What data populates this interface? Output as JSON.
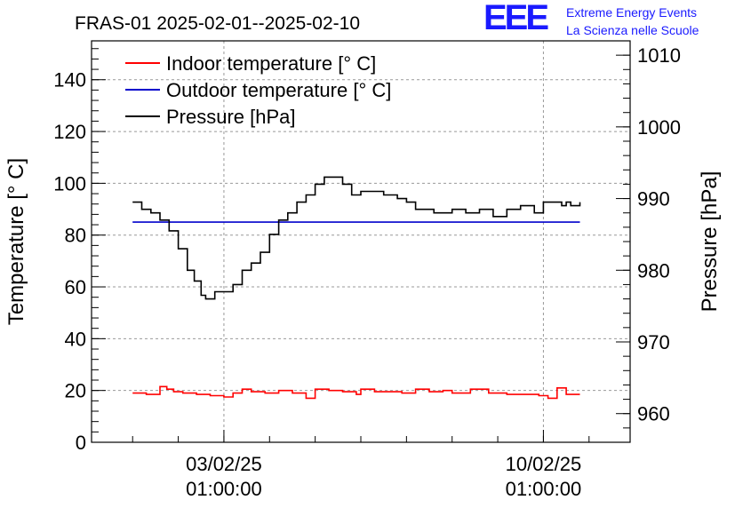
{
  "logo": {
    "mark": "EEE",
    "line1": "Extreme Energy Events",
    "line2": "La Scienza nelle Scuole"
  },
  "chart_data": {
    "type": "line",
    "title": "FRAS-01 2025-02-01--2025-02-10",
    "ylabel": "Temperature [° C]",
    "y2label": "Pressure [hPa]",
    "ylim": [
      0,
      155
    ],
    "y2lim": [
      956,
      1012
    ],
    "y_ticks": [
      0,
      20,
      40,
      60,
      80,
      100,
      120,
      140
    ],
    "y2_ticks": [
      960,
      970,
      980,
      990,
      1000,
      1010
    ],
    "x_tick_labels": [
      {
        "date": "03/02/25",
        "time": "01:00:00",
        "day": 3
      },
      {
        "date": "10/02/25",
        "time": "01:00:00",
        "day": 10
      }
    ],
    "xlim_days": [
      0.1,
      11.9
    ],
    "grid": true,
    "legend_position": "top-left",
    "series": [
      {
        "name": "Indoor temperature [° C]",
        "axis": "left",
        "color": "#ff0000",
        "x_days": [
          1.0,
          1.3,
          1.6,
          1.75,
          1.9,
          2.1,
          2.4,
          2.7,
          3.0,
          3.2,
          3.4,
          3.6,
          3.9,
          4.2,
          4.5,
          4.8,
          5.0,
          5.3,
          5.6,
          5.9,
          6.0,
          6.3,
          6.6,
          6.9,
          7.2,
          7.5,
          7.8,
          8.0,
          8.4,
          8.8,
          9.2,
          9.6,
          9.9,
          10.1,
          10.3,
          10.5,
          10.8
        ],
        "values": [
          19.0,
          18.5,
          21.5,
          20.5,
          19.5,
          19.0,
          18.5,
          18.0,
          17.5,
          19.0,
          20.5,
          19.5,
          19.0,
          20.0,
          19.0,
          17.0,
          20.5,
          20.0,
          19.5,
          18.5,
          20.5,
          19.5,
          19.5,
          19.0,
          20.5,
          19.5,
          20.0,
          19.0,
          20.5,
          19.0,
          18.5,
          18.5,
          18.0,
          17.0,
          21.0,
          18.5,
          18.5
        ]
      },
      {
        "name": "Outdoor temperature [° C]",
        "axis": "left",
        "color": "#0000cc",
        "x_days": [
          1.0,
          10.8
        ],
        "values": [
          85,
          85
        ]
      },
      {
        "name": "Pressure [hPa]",
        "axis": "right",
        "color": "#000000",
        "x_days": [
          1.0,
          1.2,
          1.4,
          1.6,
          1.8,
          2.0,
          2.2,
          2.35,
          2.5,
          2.6,
          2.8,
          3.0,
          3.2,
          3.4,
          3.6,
          3.8,
          4.0,
          4.2,
          4.4,
          4.6,
          4.8,
          5.0,
          5.2,
          5.4,
          5.6,
          5.8,
          6.0,
          6.2,
          6.5,
          6.8,
          7.0,
          7.2,
          7.4,
          7.6,
          7.8,
          8.0,
          8.3,
          8.6,
          8.9,
          9.2,
          9.5,
          9.8,
          10.0,
          10.2,
          10.4,
          10.5,
          10.6,
          10.8
        ],
        "values": [
          989.5,
          988.5,
          988.0,
          987.0,
          985.5,
          983.0,
          980.0,
          978.5,
          976.5,
          976.0,
          977.0,
          977.0,
          978.0,
          980.0,
          981.0,
          982.5,
          985.0,
          987.0,
          988.0,
          989.5,
          990.5,
          992.0,
          993.0,
          993.0,
          992.0,
          990.5,
          991.0,
          991.0,
          990.5,
          990.0,
          989.5,
          988.5,
          988.5,
          988.0,
          988.0,
          988.5,
          988.0,
          988.5,
          987.5,
          988.5,
          989.0,
          988.0,
          989.5,
          989.5,
          989.0,
          989.5,
          989.0,
          989.5
        ]
      }
    ]
  }
}
